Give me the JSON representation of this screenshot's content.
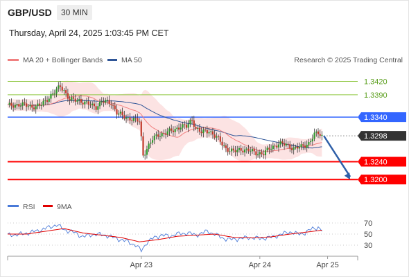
{
  "header": {
    "pair": "GBP/USD",
    "timeframe": "30 MIN",
    "timestamp": "Thursday, April 24, 2025 1:03:45 PM CET"
  },
  "credit": "Research © 2025 Trading Central",
  "colors": {
    "bollinger": "#f08080",
    "ma50": "#2f5597",
    "resistance_minor": "#8dc63f",
    "pivot": "#3366ff",
    "support": "#ff0000",
    "current_price_label": "#333333",
    "rsi": "#4a7ad8",
    "rsi_ma": "#e00000",
    "forecast_arrow": "#2e5fa8"
  },
  "chart_data": [
    {
      "type": "line",
      "title": "GBP/USD 30 MIN",
      "legend": [
        {
          "name": "MA 20 + Bollinger Bands",
          "color": "#f08080"
        },
        {
          "name": "MA 50",
          "color": "#2f5597"
        }
      ],
      "legend_position": "top-left",
      "ylim": [
        1.316,
        1.3455
      ],
      "x_labels": [
        "Apr 23",
        "Apr 24",
        "Apr 25"
      ],
      "levels": [
        {
          "value": 1.342,
          "label": "1.3420",
          "kind": "resistance-2"
        },
        {
          "value": 1.339,
          "label": "1.3390",
          "kind": "resistance-1"
        },
        {
          "value": 1.334,
          "label": "1.3340",
          "kind": "pivot"
        },
        {
          "value": 1.3298,
          "label": "1.3298",
          "kind": "last-price"
        },
        {
          "value": 1.324,
          "label": "1.3240",
          "kind": "support-1"
        },
        {
          "value": 1.32,
          "label": "1.3200",
          "kind": "support-2"
        }
      ],
      "series": [
        {
          "name": "MA 20 + Bollinger Bands",
          "style": "band"
        },
        {
          "name": "MA 50",
          "style": "line"
        }
      ],
      "price_path": [
        [
          0,
          1.3365
        ],
        [
          5,
          1.3368
        ],
        [
          10,
          1.3366
        ],
        [
          15,
          1.3363
        ],
        [
          18,
          1.3368
        ],
        [
          22,
          1.3385
        ],
        [
          25,
          1.3395
        ],
        [
          28,
          1.341
        ],
        [
          30,
          1.34
        ],
        [
          33,
          1.3378
        ],
        [
          38,
          1.3378
        ],
        [
          42,
          1.337
        ],
        [
          47,
          1.3363
        ],
        [
          50,
          1.3375
        ],
        [
          55,
          1.3372
        ],
        [
          58,
          1.335
        ],
        [
          62,
          1.334
        ],
        [
          66,
          1.3336
        ],
        [
          70,
          1.333
        ],
        [
          72,
          1.3255
        ],
        [
          74,
          1.327
        ],
        [
          77,
          1.329
        ],
        [
          80,
          1.33
        ],
        [
          84,
          1.3305
        ],
        [
          88,
          1.331
        ],
        [
          92,
          1.332
        ],
        [
          95,
          1.3318
        ],
        [
          98,
          1.3335
        ],
        [
          100,
          1.3315
        ],
        [
          103,
          1.3305
        ],
        [
          107,
          1.331
        ],
        [
          112,
          1.329
        ],
        [
          116,
          1.327
        ],
        [
          120,
          1.3262
        ],
        [
          124,
          1.3268
        ],
        [
          128,
          1.3265
        ],
        [
          132,
          1.326
        ],
        [
          136,
          1.3258
        ],
        [
          140,
          1.3272
        ],
        [
          144,
          1.328
        ],
        [
          148,
          1.3278
        ],
        [
          152,
          1.327
        ],
        [
          156,
          1.3273
        ],
        [
          160,
          1.3282
        ],
        [
          163,
          1.33
        ],
        [
          165,
          1.3304
        ],
        [
          167,
          1.3298
        ]
      ],
      "forecast_arrow": {
        "from": [
          168,
          1.3298
        ],
        "to": [
          182,
          1.32
        ]
      }
    },
    {
      "type": "line",
      "title": "RSI",
      "legend": [
        {
          "name": "RSI",
          "color": "#4a7ad8"
        },
        {
          "name": "9MA",
          "color": "#e00000"
        }
      ],
      "legend_position": "top-left",
      "ylim": [
        15,
        85
      ],
      "y_ticks": [
        "70",
        "50",
        "30"
      ],
      "series": [
        {
          "name": "RSI",
          "values": [
            [
              0,
              48
            ],
            [
              8,
              50
            ],
            [
              16,
              56
            ],
            [
              22,
              62
            ],
            [
              26,
              67
            ],
            [
              30,
              58
            ],
            [
              36,
              52
            ],
            [
              40,
              45
            ],
            [
              46,
              50
            ],
            [
              52,
              48
            ],
            [
              56,
              44
            ],
            [
              60,
              40
            ],
            [
              64,
              36
            ],
            [
              68,
              30
            ],
            [
              71,
              20
            ],
            [
              74,
              35
            ],
            [
              78,
              44
            ],
            [
              82,
              48
            ],
            [
              86,
              46
            ],
            [
              90,
              50
            ],
            [
              96,
              52
            ],
            [
              100,
              48
            ],
            [
              106,
              55
            ],
            [
              110,
              50
            ],
            [
              114,
              43
            ],
            [
              118,
              40
            ],
            [
              124,
              42
            ],
            [
              128,
              44
            ],
            [
              134,
              42
            ],
            [
              140,
              44
            ],
            [
              146,
              50
            ],
            [
              150,
              54
            ],
            [
              154,
              50
            ],
            [
              158,
              52
            ],
            [
              162,
              60
            ],
            [
              165,
              62
            ],
            [
              167,
              56
            ]
          ]
        },
        {
          "name": "9MA",
          "values": [
            [
              0,
              50
            ],
            [
              10,
              50
            ],
            [
              20,
              55
            ],
            [
              30,
              60
            ],
            [
              40,
              52
            ],
            [
              50,
              48
            ],
            [
              60,
              44
            ],
            [
              70,
              36
            ],
            [
              80,
              40
            ],
            [
              90,
              46
            ],
            [
              100,
              48
            ],
            [
              110,
              50
            ],
            [
              120,
              44
            ],
            [
              130,
              43
            ],
            [
              140,
              45
            ],
            [
              150,
              50
            ],
            [
              160,
              54
            ],
            [
              167,
              57
            ]
          ]
        }
      ]
    }
  ]
}
